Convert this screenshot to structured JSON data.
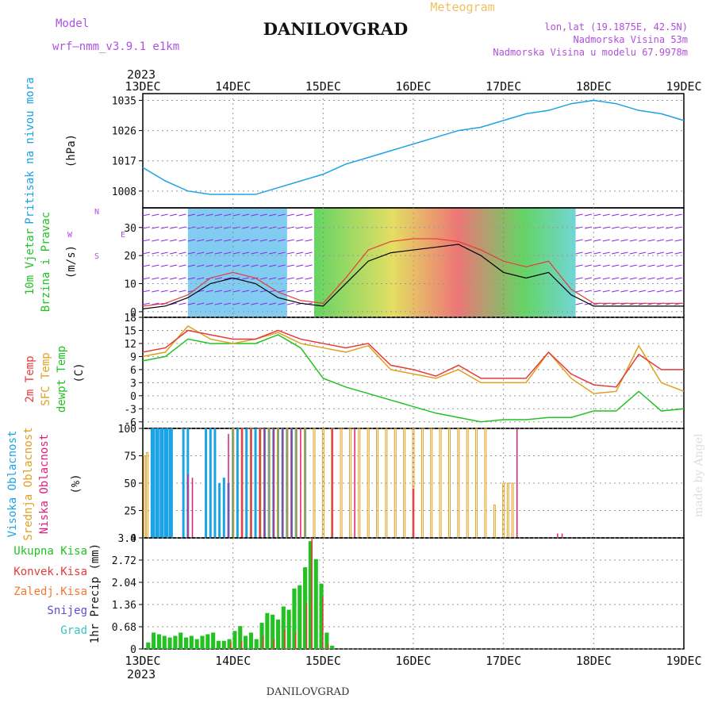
{
  "header": {
    "model_label": "Model",
    "model_value": "wrf—nmm_v3.9.1 e1km",
    "station": "DANILOVGRAD",
    "meteogram": "Meteogram",
    "lonlat": "lon,lat (19.1875E, 42.5N)",
    "elev": "Nadmorska Visina 53m",
    "elev_model": "Nadmorska Visina u modelu 67.9978m",
    "year": "2023"
  },
  "footer": {
    "station": "DANILOVGRAD",
    "credit": "made by Angel"
  },
  "colors": {
    "pressure": "#1ca3e6",
    "temp2m": "#e63b3b",
    "sfctemp": "#e0a020",
    "dewpt": "#22c222",
    "high": "#1ca3e6",
    "mid": "#e0a020",
    "low": "#e01e78",
    "lowcloud2": "#5b4bd6",
    "total": "#22c222",
    "convective": "#e63b3b",
    "frozen": "#f07830",
    "snow": "#5b4bd6",
    "hail": "#35c4c4",
    "label_purple": "#b050e0"
  },
  "chart_data": [
    {
      "type": "line",
      "title": "",
      "x_ticks": [
        "13DEC",
        "14DEC",
        "15DEC",
        "16DEC",
        "17DEC",
        "18DEC",
        "19DEC"
      ],
      "ylabel": [
        "Pritisak na nivou mora",
        "(hPa)"
      ],
      "y_ticks": [
        1008,
        1017,
        1026,
        1035
      ],
      "ylim": [
        1003,
        1037
      ],
      "series": [
        {
          "name": "Pritisak na nivou mora",
          "x": [
            0,
            0.25,
            0.5,
            0.75,
            1.0,
            1.25,
            1.5,
            1.75,
            2.0,
            2.25,
            2.5,
            2.75,
            3.0,
            3.25,
            3.5,
            3.75,
            4.0,
            4.25,
            4.5,
            4.75,
            5.0,
            5.25,
            5.5,
            5.75,
            6.0
          ],
          "values": [
            1015,
            1011,
            1008,
            1007,
            1007,
            1007,
            1009,
            1011,
            1013,
            1016,
            1018,
            1020,
            1022,
            1024,
            1026,
            1027,
            1029,
            1031,
            1032,
            1034,
            1035,
            1034,
            1032,
            1031,
            1029
          ]
        }
      ]
    },
    {
      "type": "line",
      "ylabel": [
        "10m Vjetar",
        "Brzina i Pravac",
        "(m/s)"
      ],
      "compass": [
        "N",
        "E",
        "S",
        "W"
      ],
      "y_ticks": [
        0,
        10,
        20,
        30
      ],
      "ylim": [
        -2,
        37
      ],
      "series": [
        {
          "name": "speed",
          "x": [
            0,
            0.25,
            0.5,
            0.75,
            1.0,
            1.25,
            1.5,
            1.75,
            2.0,
            2.25,
            2.5,
            2.75,
            3.0,
            3.25,
            3.5,
            3.75,
            4.0,
            4.25,
            4.5,
            4.75,
            5.0,
            5.25,
            5.5,
            5.75,
            6.0
          ],
          "values": [
            1,
            2,
            5,
            10,
            12,
            10,
            5,
            3,
            2,
            10,
            18,
            21,
            22,
            23,
            24,
            20,
            14,
            12,
            14,
            6,
            2,
            2,
            2,
            2,
            2
          ]
        },
        {
          "name": "gust",
          "x": [
            0,
            0.25,
            0.5,
            0.75,
            1.0,
            1.25,
            1.5,
            1.75,
            2.0,
            2.25,
            2.5,
            2.75,
            3.0,
            3.25,
            3.5,
            3.75,
            4.0,
            4.25,
            4.5,
            4.75,
            5.0,
            5.25,
            5.5,
            5.75,
            6.0
          ],
          "values": [
            2,
            3,
            6,
            12,
            14,
            12,
            7,
            4,
            3,
            12,
            22,
            25,
            26,
            26,
            25,
            22,
            18,
            16,
            18,
            8,
            3,
            3,
            3,
            3,
            3
          ]
        }
      ]
    },
    {
      "type": "line",
      "ylabel": [
        "2m Temp",
        "SFC Temp",
        "dewpt Temp",
        "(C)"
      ],
      "y_ticks": [
        -6,
        -3,
        0,
        3,
        6,
        9,
        12,
        15,
        18
      ],
      "ylim": [
        -7.5,
        18
      ],
      "series": [
        {
          "name": "2m Temp",
          "x": [
            0,
            0.25,
            0.5,
            0.75,
            1.0,
            1.25,
            1.5,
            1.75,
            2.0,
            2.25,
            2.5,
            2.75,
            3.0,
            3.25,
            3.5,
            3.75,
            4.0,
            4.25,
            4.5,
            4.75,
            5.0,
            5.25,
            5.5,
            5.75,
            6.0
          ],
          "values": [
            10,
            11,
            15,
            14,
            13,
            13,
            15,
            13,
            12,
            11,
            12,
            7,
            6,
            4.5,
            7,
            4,
            4,
            4,
            10,
            5,
            2.5,
            2,
            9.5,
            6,
            6
          ]
        },
        {
          "name": "SFC Temp",
          "x": [
            0,
            0.25,
            0.5,
            0.75,
            1.0,
            1.25,
            1.5,
            1.75,
            2.0,
            2.25,
            2.5,
            2.75,
            3.0,
            3.25,
            3.5,
            3.75,
            4.0,
            4.25,
            4.5,
            4.75,
            5.0,
            5.25,
            5.5,
            5.75,
            6.0
          ],
          "values": [
            9,
            10,
            16,
            13,
            12,
            13,
            14.5,
            12,
            11,
            10,
            11.5,
            6,
            5,
            4,
            6,
            3,
            3,
            3,
            10,
            4,
            0.5,
            1,
            11.5,
            3,
            1
          ]
        },
        {
          "name": "dewpt Temp",
          "x": [
            0,
            0.25,
            0.5,
            0.75,
            1.0,
            1.25,
            1.5,
            1.75,
            2.0,
            2.25,
            2.5,
            2.75,
            3.0,
            3.25,
            3.5,
            3.75,
            4.0,
            4.25,
            4.5,
            4.75,
            5.0,
            5.25,
            5.5,
            5.75,
            6.0
          ],
          "values": [
            8,
            9,
            13,
            12,
            12,
            12,
            14,
            11,
            4,
            2,
            0.5,
            -1,
            -2.5,
            -4,
            -5,
            -6,
            -5.5,
            -5.5,
            -5,
            -5,
            -3.5,
            -3.5,
            1,
            -3.5,
            -3
          ]
        }
      ]
    },
    {
      "type": "bar",
      "ylabel": [
        "Visoka Oblacnost",
        "Srednja Oblacnost",
        "Niska Oblacnost",
        "(%)"
      ],
      "y_ticks": [
        0,
        25,
        50,
        75,
        100
      ],
      "ylim": [
        0,
        100
      ],
      "series": [
        {
          "name": "Visoka Oblacnost",
          "x": [
            0.1,
            0.12,
            0.15,
            0.17,
            0.2,
            0.22,
            0.25,
            0.27,
            0.3,
            0.32,
            0.45,
            0.5,
            0.7,
            0.75,
            0.8,
            0.85,
            0.9,
            0.95,
            1.0,
            1.05,
            1.1,
            1.15,
            1.2,
            1.25,
            1.3,
            1.35,
            1.4,
            1.45,
            1.5,
            1.55,
            1.6,
            1.65,
            1.7,
            1.8
          ],
          "values": [
            100,
            100,
            100,
            100,
            100,
            100,
            100,
            100,
            100,
            100,
            100,
            100,
            100,
            100,
            100,
            50,
            55,
            50,
            100,
            100,
            100,
            100,
            100,
            100,
            100,
            100,
            100,
            100,
            100,
            100,
            100,
            100,
            100,
            100
          ]
        },
        {
          "name": "Srednja Oblacnost",
          "x": [
            0.02,
            0.05,
            1.0,
            1.1,
            1.2,
            1.3,
            1.4,
            1.5,
            1.6,
            1.7,
            1.8,
            1.9,
            2.0,
            2.1,
            2.2,
            2.3,
            2.4,
            2.5,
            2.6,
            2.7,
            2.8,
            2.9,
            3.0,
            3.1,
            3.2,
            3.3,
            3.4,
            3.5,
            3.6,
            3.7,
            3.8,
            3.9,
            4.0,
            4.05,
            4.1
          ],
          "values": [
            75,
            78,
            100,
            100,
            100,
            100,
            100,
            100,
            100,
            100,
            100,
            100,
            100,
            100,
            100,
            100,
            100,
            100,
            100,
            100,
            100,
            100,
            100,
            100,
            100,
            100,
            100,
            100,
            100,
            100,
            100,
            30,
            50,
            50,
            50
          ]
        },
        {
          "name": "Niska Oblacnost",
          "x": [
            0.5,
            0.55,
            0.95,
            1.1,
            1.2,
            1.3,
            1.35,
            1.45,
            1.55,
            1.65,
            1.75,
            2.1,
            2.35,
            3.0,
            4.15,
            4.6,
            4.65
          ],
          "values": [
            58,
            55,
            95,
            100,
            100,
            100,
            100,
            100,
            100,
            100,
            100,
            100,
            100,
            45,
            100,
            4,
            4
          ]
        }
      ]
    },
    {
      "type": "bar",
      "ylabel": [
        "1hr Precip (mm)"
      ],
      "legend": [
        "Ukupna Kisa",
        "Konvek.Kisa",
        "Zaledj.Kisa",
        "Snijeg",
        "Grad"
      ],
      "y_ticks": [
        0,
        0.68,
        1.36,
        2.04,
        2.72,
        3.4
      ],
      "ylim": [
        0,
        3.4
      ],
      "series": [
        {
          "name": "Ukupna Kisa",
          "x": [
            0.06,
            0.12,
            0.18,
            0.24,
            0.3,
            0.36,
            0.42,
            0.48,
            0.54,
            0.6,
            0.66,
            0.72,
            0.78,
            0.84,
            0.9,
            0.96,
            1.02,
            1.08,
            1.14,
            1.2,
            1.26,
            1.32,
            1.38,
            1.44,
            1.5,
            1.56,
            1.62,
            1.68,
            1.74,
            1.8,
            1.86,
            1.92,
            1.98,
            2.04,
            2.1
          ],
          "values": [
            0.2,
            0.5,
            0.45,
            0.4,
            0.35,
            0.4,
            0.5,
            0.35,
            0.4,
            0.3,
            0.4,
            0.45,
            0.5,
            0.25,
            0.25,
            0.3,
            0.55,
            0.7,
            0.4,
            0.5,
            0.3,
            0.8,
            1.1,
            1.05,
            0.9,
            1.3,
            1.2,
            1.85,
            1.95,
            2.5,
            3.3,
            2.75,
            2.0,
            0.5,
            0.1
          ]
        },
        {
          "name": "Konvek.Kisa",
          "x": [
            0.96,
            1.08,
            1.32,
            1.44,
            1.56,
            1.68,
            1.8,
            1.86,
            1.98,
            2.04
          ],
          "values": [
            0.2,
            0.25,
            0.4,
            0.3,
            0.6,
            0.5,
            1.4,
            3.4,
            1.6,
            0.15
          ]
        }
      ]
    }
  ]
}
